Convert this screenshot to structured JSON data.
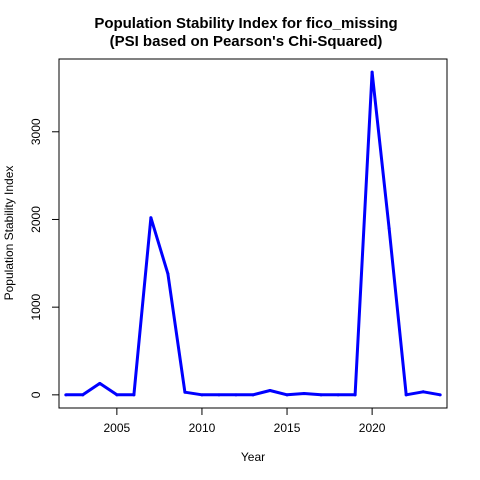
{
  "chart_data": {
    "type": "line",
    "title": "Population Stability Index for fico_missing",
    "subtitle": "(PSI based on Pearson's Chi-Squared)",
    "xlabel": "Year",
    "ylabel": "Population Stability Index",
    "xlim": [
      2001.6,
      2024.4
    ],
    "ylim": [
      -150,
      3830
    ],
    "x_ticks": [
      2005,
      2010,
      2015,
      2020
    ],
    "y_ticks": [
      0,
      1000,
      2000,
      3000
    ],
    "grid": false,
    "series": [
      {
        "color": "#0000ff",
        "x": [
          2002,
          2003,
          2004,
          2005,
          2006,
          2007,
          2008,
          2009,
          2010,
          2011,
          2012,
          2013,
          2014,
          2015,
          2016,
          2017,
          2018,
          2019,
          2020,
          2021,
          2022,
          2023,
          2024
        ],
        "y": [
          0,
          0,
          130,
          0,
          0,
          2020,
          1380,
          30,
          0,
          0,
          0,
          0,
          50,
          0,
          15,
          0,
          0,
          0,
          3680,
          1900,
          0,
          35,
          0
        ]
      }
    ]
  }
}
